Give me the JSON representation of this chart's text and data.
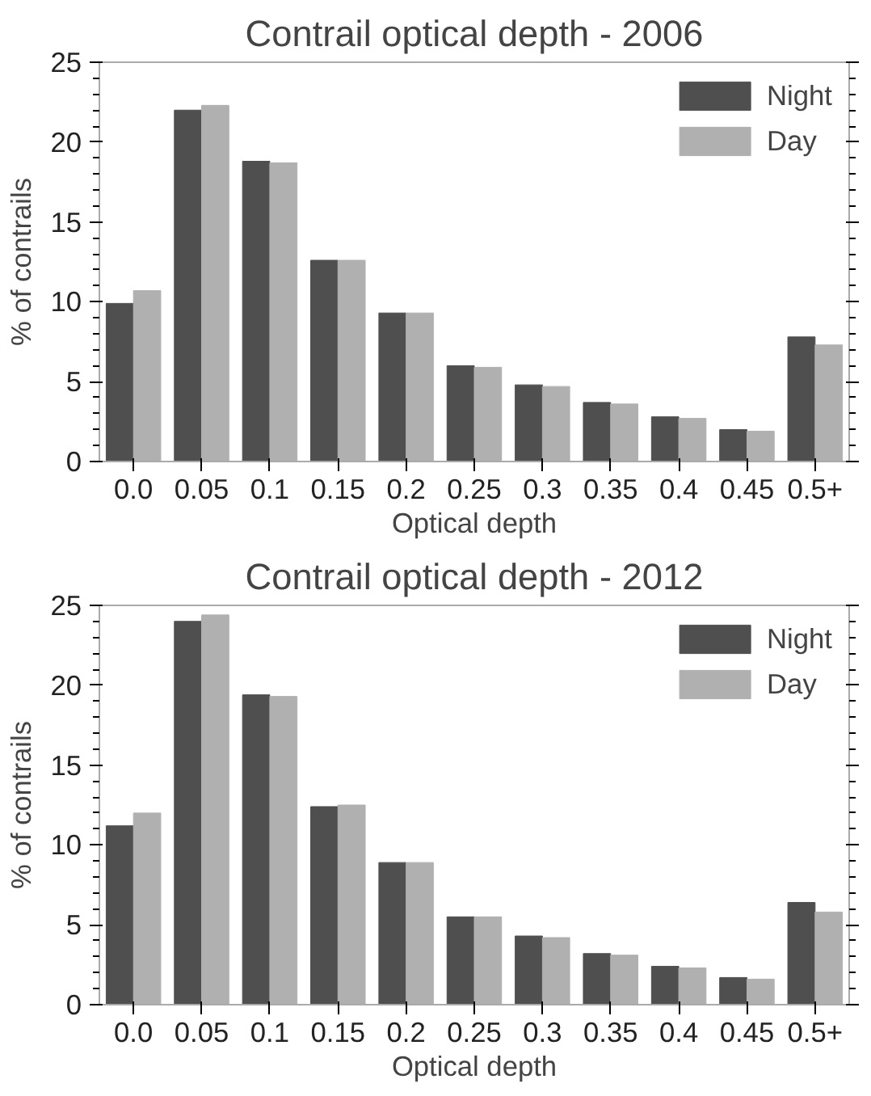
{
  "chart_data": [
    {
      "type": "bar",
      "title": "Contrail optical depth - 2006",
      "xlabel": "Optical depth",
      "ylabel": "% of contrails",
      "categories": [
        "0.0",
        "0.05",
        "0.1",
        "0.15",
        "0.2",
        "0.25",
        "0.3",
        "0.35",
        "0.4",
        "0.45",
        "0.5+"
      ],
      "series": [
        {
          "name": "Night",
          "color": "#4f4f4f",
          "values": [
            9.9,
            22.0,
            18.8,
            12.6,
            9.3,
            6.0,
            4.8,
            3.7,
            2.8,
            2.0,
            7.8
          ]
        },
        {
          "name": "Day",
          "color": "#b0b0b0",
          "values": [
            10.7,
            22.3,
            18.7,
            12.6,
            9.3,
            5.9,
            4.7,
            3.6,
            2.7,
            1.9,
            7.3
          ]
        }
      ],
      "ylim": [
        0,
        25
      ],
      "yticks": [
        0,
        5,
        10,
        15,
        20,
        25
      ],
      "grid": false,
      "legend": "top right"
    },
    {
      "type": "bar",
      "title": "Contrail optical depth - 2012",
      "xlabel": "Optical depth",
      "ylabel": "% of contrails",
      "categories": [
        "0.0",
        "0.05",
        "0.1",
        "0.15",
        "0.2",
        "0.25",
        "0.3",
        "0.35",
        "0.4",
        "0.45",
        "0.5+"
      ],
      "series": [
        {
          "name": "Night",
          "color": "#4f4f4f",
          "values": [
            11.2,
            24.0,
            19.4,
            12.4,
            8.9,
            5.5,
            4.3,
            3.2,
            2.4,
            1.7,
            6.4
          ]
        },
        {
          "name": "Day",
          "color": "#b0b0b0",
          "values": [
            12.0,
            24.4,
            19.3,
            12.5,
            8.9,
            5.5,
            4.2,
            3.1,
            2.3,
            1.6,
            5.8
          ]
        }
      ],
      "ylim": [
        0,
        25
      ],
      "yticks": [
        0,
        5,
        10,
        15,
        20,
        25
      ],
      "grid": false,
      "legend": "top right"
    }
  ]
}
